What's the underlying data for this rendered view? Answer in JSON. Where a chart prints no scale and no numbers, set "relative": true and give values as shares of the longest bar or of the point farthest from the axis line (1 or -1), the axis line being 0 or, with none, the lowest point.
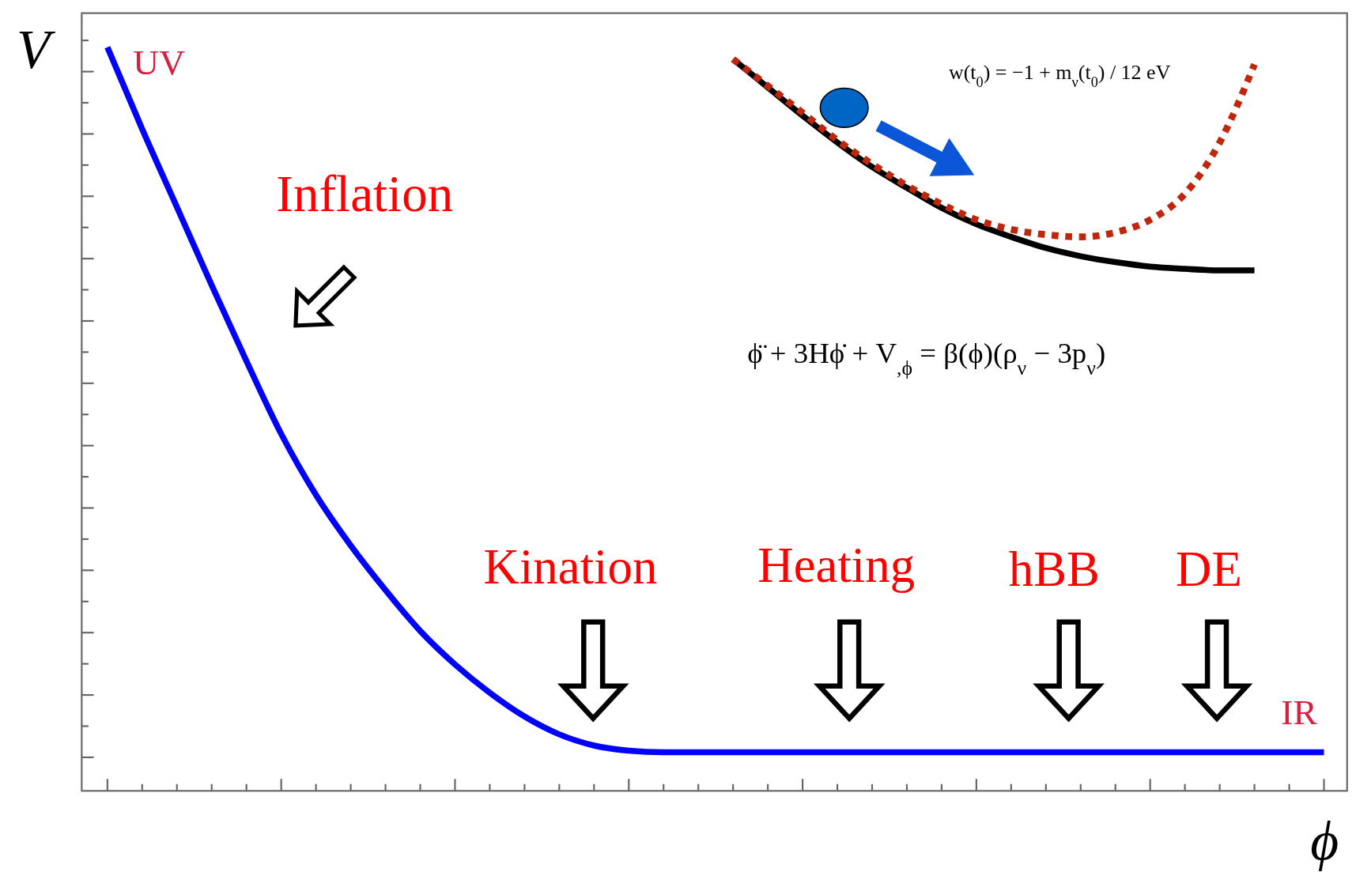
{
  "chart_data": {
    "type": "line",
    "relative": true,
    "xlabel": "ϕ",
    "ylabel": "V",
    "categories": [
      null,
      null,
      null,
      null,
      null,
      null,
      null,
      null,
      null,
      null,
      null,
      null,
      null,
      null,
      null,
      null,
      null,
      null,
      null,
      null,
      null,
      null,
      null,
      null,
      null,
      null,
      null,
      null,
      null,
      null,
      null,
      null,
      null,
      null,
      null,
      null
    ],
    "series": [
      {
        "color": "#0000ff",
        "values": [
          1.0,
          0.89,
          0.785,
          0.68,
          0.578,
          0.48,
          0.398,
          0.33,
          0.27,
          0.215,
          0.17,
          0.132,
          0.1,
          0.076,
          0.061,
          0.054,
          0.052,
          0.052,
          0.052,
          0.052,
          0.052,
          0.052,
          0.052,
          0.052,
          0.052,
          0.052,
          0.052,
          0.052,
          0.052,
          0.052,
          0.052,
          0.052,
          0.052,
          0.052,
          0.052,
          0.052
        ]
      },
      {
        "color": "#000000",
        "values": [
          null,
          null,
          null,
          null,
          null,
          null,
          null,
          null,
          null,
          null,
          null,
          null,
          null,
          null,
          null,
          null,
          null,
          null,
          0.984,
          0.946,
          0.908,
          0.872,
          0.839,
          0.811,
          0.784,
          0.762,
          0.745,
          0.73,
          0.719,
          0.711,
          0.705,
          0.702,
          0.7,
          0.7,
          null,
          null
        ]
      },
      {
        "color": "#c0260c",
        "line_style": "dotted",
        "values": [
          null,
          null,
          null,
          null,
          null,
          null,
          null,
          null,
          null,
          null,
          null,
          null,
          null,
          null,
          null,
          null,
          null,
          null,
          0.984,
          0.948,
          0.912,
          0.875,
          0.843,
          0.814,
          0.789,
          0.768,
          0.755,
          0.748,
          0.745,
          0.751,
          0.768,
          0.803,
          0.872,
          0.977,
          null,
          null
        ]
      }
    ],
    "annotations": [
      "UV",
      "Inflation",
      "Kination",
      "Heating",
      "hBB",
      "DE",
      "IR",
      "w(t$_{0}$) = −1 + m$_{ν}$(t$_{0}$) / 12 eV",
      "ϕ̈ + 3Hϕ̇ + V$_{,ϕ}$ = β(ϕ)(ρ$_{ν}$ − 3p$_{ν}$)"
    ]
  }
}
